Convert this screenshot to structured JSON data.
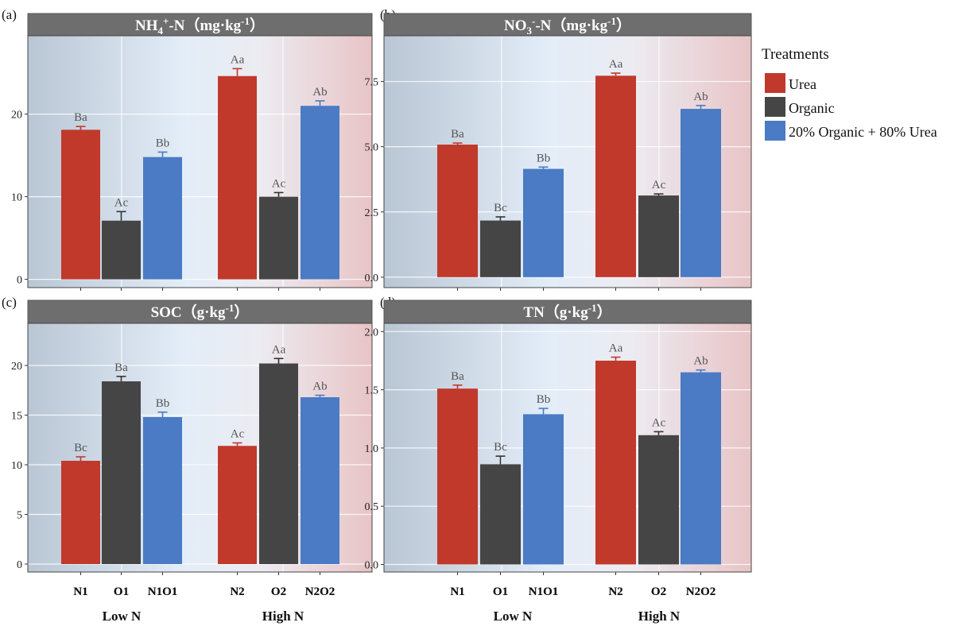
{
  "figure": {
    "legend": {
      "title": "Treatments",
      "entries": [
        {
          "label": "Urea",
          "color": "#c0392b"
        },
        {
          "label": "Organic",
          "color": "#454545"
        },
        {
          "label": "20% Organic + 80% Urea",
          "color": "#4a7bc4"
        }
      ]
    },
    "group_labels": [
      "Low N",
      "High N"
    ]
  },
  "chart_data": [
    {
      "type": "bar",
      "panel": "(a)",
      "title": "NH4+-N (mg·kg-1)",
      "title_main": "NH",
      "title_sub": "4",
      "title_sup": "+",
      "title_rest": "-N（mg·kg",
      "title_exp": "-1",
      "title_close": "）",
      "categories": [
        "N1",
        "O1",
        "N1O1",
        "N2",
        "O2",
        "N2O2"
      ],
      "series_colors": [
        "#c0392b",
        "#454545",
        "#4a7bc4",
        "#c0392b",
        "#454545",
        "#4a7bc4"
      ],
      "values": [
        18.1,
        7.1,
        14.8,
        24.6,
        10.0,
        21.0
      ],
      "errors": [
        0.4,
        1.1,
        0.6,
        0.9,
        0.5,
        0.6
      ],
      "letters": [
        "Ba",
        "Ac",
        "Bb",
        "Aa",
        "Ac",
        "Ab"
      ],
      "ylim": [
        -1,
        29
      ],
      "yticks": [
        0,
        10,
        20
      ],
      "ytick_labels": [
        "0",
        "10",
        "20"
      ]
    },
    {
      "type": "bar",
      "panel": "(b)",
      "title": "NO3--N (mg·kg-1)",
      "title_main": "NO",
      "title_sub": "3",
      "title_sup": "-",
      "title_rest": "-N（mg·kg",
      "title_exp": "-1",
      "title_close": "）",
      "categories": [
        "N1",
        "O1",
        "N1O1",
        "N2",
        "O2",
        "N2O2"
      ],
      "series_colors": [
        "#c0392b",
        "#454545",
        "#4a7bc4",
        "#c0392b",
        "#454545",
        "#4a7bc4"
      ],
      "values": [
        5.08,
        2.17,
        4.15,
        7.72,
        3.13,
        6.45
      ],
      "errors": [
        0.06,
        0.14,
        0.07,
        0.1,
        0.06,
        0.13
      ],
      "letters": [
        "Ba",
        "Bc",
        "Bb",
        "Aa",
        "Ac",
        "Ab"
      ],
      "ylim": [
        -0.4,
        9.1
      ],
      "yticks": [
        0,
        2.5,
        5.0,
        7.5
      ],
      "ytick_labels": [
        "0.0",
        "2.5",
        "5.0",
        "7.5"
      ]
    },
    {
      "type": "bar",
      "panel": "(c)",
      "title": "SOC (g·kg-1)",
      "title_main": "SOC（g·kg",
      "title_sub": "",
      "title_sup": "",
      "title_rest": "",
      "title_exp": "-1",
      "title_close": "）",
      "categories": [
        "N1",
        "O1",
        "N1O1",
        "N2",
        "O2",
        "N2O2"
      ],
      "series_colors": [
        "#c0392b",
        "#454545",
        "#4a7bc4",
        "#c0392b",
        "#454545",
        "#4a7bc4"
      ],
      "values": [
        10.4,
        18.4,
        14.8,
        11.9,
        20.2,
        16.8
      ],
      "errors": [
        0.4,
        0.5,
        0.5,
        0.3,
        0.5,
        0.2
      ],
      "letters": [
        "Bc",
        "Ba",
        "Bb",
        "Ac",
        "Aa",
        "Ab"
      ],
      "ylim": [
        -0.8,
        24
      ],
      "yticks": [
        0,
        5,
        10,
        15,
        20
      ],
      "ytick_labels": [
        "0",
        "5",
        "10",
        "15",
        "20"
      ]
    },
    {
      "type": "bar",
      "panel": "(d)",
      "title": "TN (g·kg-1)",
      "title_main": "TN（g·kg",
      "title_sub": "",
      "title_sup": "",
      "title_rest": "",
      "title_exp": "-1",
      "title_close": "）",
      "categories": [
        "N1",
        "O1",
        "N1O1",
        "N2",
        "O2",
        "N2O2"
      ],
      "series_colors": [
        "#c0392b",
        "#454545",
        "#4a7bc4",
        "#c0392b",
        "#454545",
        "#4a7bc4"
      ],
      "values": [
        1.51,
        0.86,
        1.29,
        1.75,
        1.11,
        1.65
      ],
      "errors": [
        0.03,
        0.07,
        0.05,
        0.03,
        0.03,
        0.02
      ],
      "letters": [
        "Ba",
        "Bc",
        "Bb",
        "Aa",
        "Ac",
        "Ab"
      ],
      "ylim": [
        -0.065,
        2.05
      ],
      "yticks": [
        0,
        0.5,
        1.0,
        1.5,
        2.0
      ],
      "ytick_labels": [
        "0.0",
        "0.5",
        "1.0",
        "1.5",
        "2.0"
      ]
    }
  ]
}
